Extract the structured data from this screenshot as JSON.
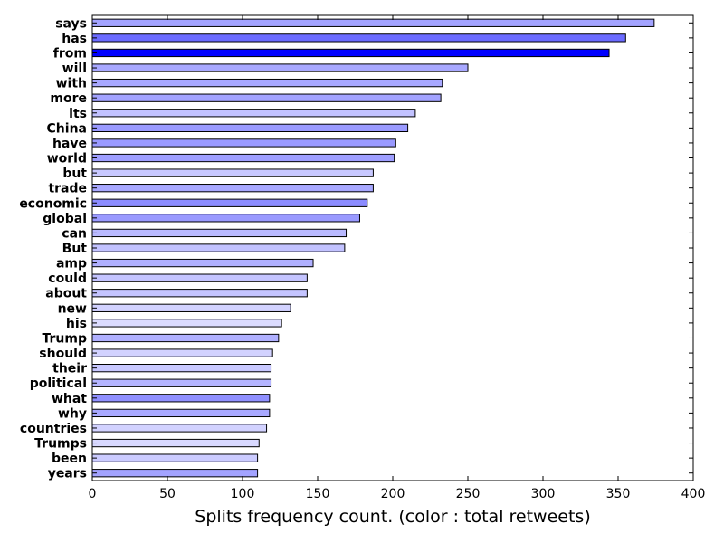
{
  "chart_data": {
    "type": "bar",
    "orientation": "horizontal",
    "xlabel": "Splits frequency count. (color : total retweets)",
    "ylabel": "",
    "title": "",
    "xlim": [
      0,
      400
    ],
    "xticks": [
      0,
      50,
      100,
      150,
      200,
      250,
      300,
      350,
      400
    ],
    "grid": false,
    "categories": [
      "says",
      "has",
      "from",
      "will",
      "with",
      "more",
      "its",
      "China",
      "have",
      "world",
      "but",
      "trade",
      "economic",
      "global",
      "can",
      "But",
      "amp",
      "could",
      "about",
      "new",
      "his",
      "Trump",
      "should",
      "their",
      "political",
      "what",
      "why",
      "countries",
      "Trumps",
      "been",
      "years"
    ],
    "values": [
      374,
      355,
      344,
      250,
      233,
      232,
      215,
      210,
      202,
      201,
      187,
      187,
      183,
      178,
      169,
      168,
      147,
      143,
      143,
      132,
      126,
      124,
      120,
      119,
      119,
      118,
      118,
      116,
      111,
      110,
      110
    ],
    "colors": [
      "#a3a3ff",
      "#6b6bff",
      "#0000ff",
      "#a8a8ff",
      "#a8a8ff",
      "#a3a3ff",
      "#c2c2ff",
      "#9a9aff",
      "#9a9aff",
      "#9e9eff",
      "#c8c8ff",
      "#a8a8ff",
      "#8c8cff",
      "#9a9aff",
      "#b9b9ff",
      "#c2c2ff",
      "#b0b0ff",
      "#c4c4ff",
      "#c4c4ff",
      "#d2d2ff",
      "#dcdcff",
      "#b0b0ff",
      "#d2d2ff",
      "#c8c8ff",
      "#b5b5ff",
      "#9090ff",
      "#a8a8ff",
      "#d2d2ff",
      "#d8d8ff",
      "#cbcbff",
      "#a3a3ff"
    ]
  }
}
